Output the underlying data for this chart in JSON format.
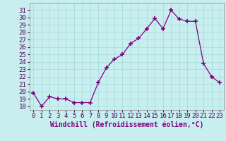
{
  "x": [
    0,
    1,
    2,
    3,
    4,
    5,
    6,
    7,
    8,
    9,
    10,
    11,
    12,
    13,
    14,
    15,
    16,
    17,
    18,
    19,
    20,
    21,
    22,
    23
  ],
  "y": [
    19.8,
    18.0,
    19.3,
    19.0,
    19.0,
    18.5,
    18.5,
    18.5,
    21.2,
    23.2,
    24.4,
    25.0,
    26.5,
    27.2,
    28.5,
    29.9,
    28.5,
    31.0,
    29.8,
    29.5,
    29.5,
    23.8,
    22.0,
    21.2
  ],
  "line_color": "#800080",
  "marker": "+",
  "marker_size": 4,
  "marker_lw": 1.2,
  "bg_color": "#c8eef0",
  "grid_color": "#aadddd",
  "xlabel": "Windchill (Refroidissement éolien,°C)",
  "xlabel_fontsize": 7,
  "tick_fontsize": 6.5,
  "ylim": [
    17.5,
    32
  ],
  "xlim": [
    -0.5,
    23.5
  ],
  "yticks": [
    18,
    19,
    20,
    21,
    22,
    23,
    24,
    25,
    26,
    27,
    28,
    29,
    30,
    31
  ],
  "xticks": [
    0,
    1,
    2,
    3,
    4,
    5,
    6,
    7,
    8,
    9,
    10,
    11,
    12,
    13,
    14,
    15,
    16,
    17,
    18,
    19,
    20,
    21,
    22,
    23
  ],
  "line_width": 0.9
}
